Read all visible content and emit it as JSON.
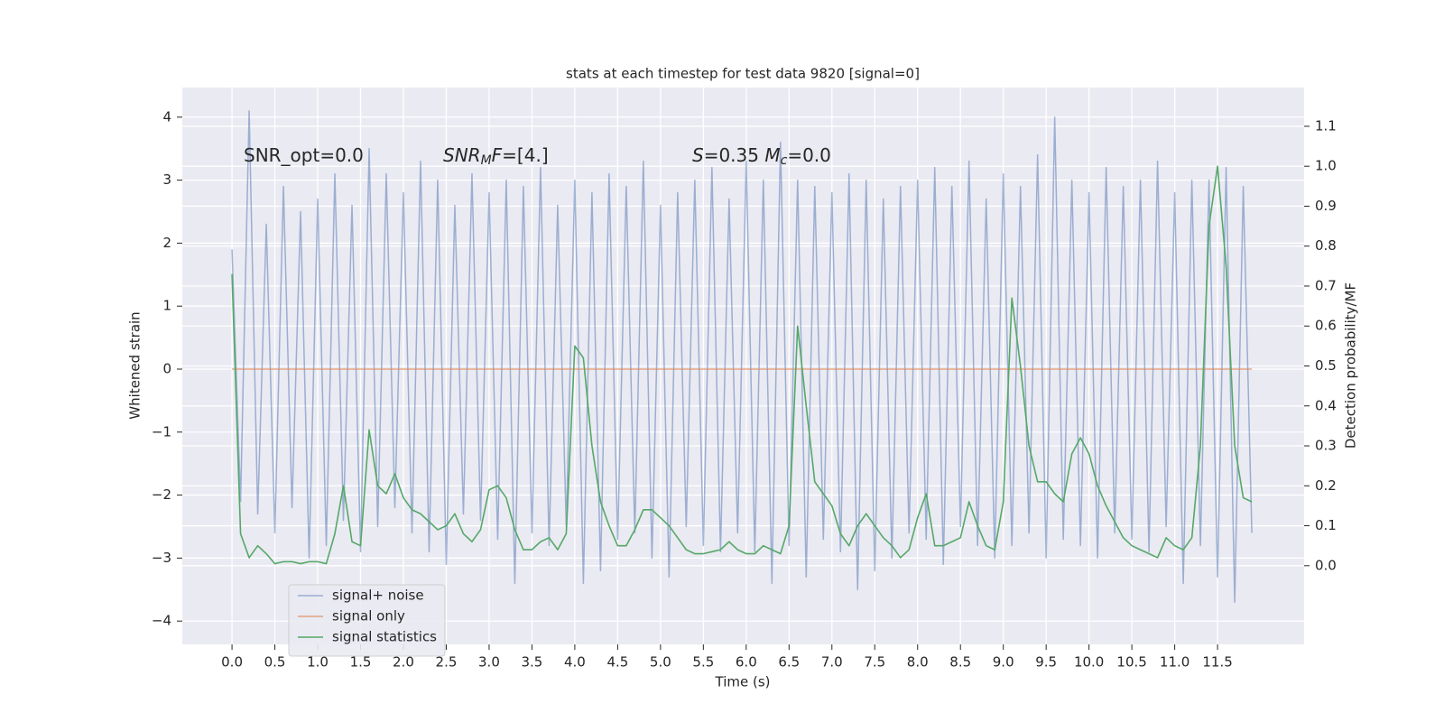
{
  "chart_data": {
    "type": "line",
    "title": "stats at each timestep for test data 9820 [signal=0]",
    "xlabel": "Time (s)",
    "ylabel": "Whitened strain",
    "y2label": "Detection probability/MF",
    "xlim": [
      -0.58,
      12.51
    ],
    "ylim": [
      -4.37,
      4.47
    ],
    "y2lim": [
      -0.197,
      1.197
    ],
    "grid": true,
    "legend": "lower left",
    "xticks": [
      {
        "value": 0,
        "label": "0.0"
      },
      {
        "value": 0.5,
        "label": "0.5"
      },
      {
        "value": 1,
        "label": "1.0"
      },
      {
        "value": 1.5,
        "label": "1.5"
      },
      {
        "value": 2,
        "label": "2.0"
      },
      {
        "value": 2.5,
        "label": "2.5"
      },
      {
        "value": 3,
        "label": "3.0"
      },
      {
        "value": 3.5,
        "label": "3.5"
      },
      {
        "value": 4,
        "label": "4.0"
      },
      {
        "value": 4.5,
        "label": "4.5"
      },
      {
        "value": 5,
        "label": "5.0"
      },
      {
        "value": 5.5,
        "label": "5.5"
      },
      {
        "value": 6,
        "label": "6.0"
      },
      {
        "value": 6.5,
        "label": "6.5"
      },
      {
        "value": 7,
        "label": "7.0"
      },
      {
        "value": 7.5,
        "label": "7.5"
      },
      {
        "value": 8,
        "label": "8.0"
      },
      {
        "value": 8.5,
        "label": "8.5"
      },
      {
        "value": 9,
        "label": "9.0"
      },
      {
        "value": 9.5,
        "label": "9.5"
      },
      {
        "value": 10,
        "label": "10.0"
      },
      {
        "value": 10.5,
        "label": "10.5"
      },
      {
        "value": 11,
        "label": "11.0"
      },
      {
        "value": 11.5,
        "label": "11.5"
      }
    ],
    "yticks": [
      {
        "value": -4,
        "label": "−4"
      },
      {
        "value": -3,
        "label": "−3"
      },
      {
        "value": -2,
        "label": "−2"
      },
      {
        "value": -1,
        "label": "−1"
      },
      0,
      1,
      2,
      3,
      4
    ],
    "y2ticks": [
      {
        "value": 0,
        "label": "0.0"
      },
      {
        "value": 0.1,
        "label": "0.1"
      },
      {
        "value": 0.2,
        "label": "0.2"
      },
      {
        "value": 0.3,
        "label": "0.3"
      },
      {
        "value": 0.4,
        "label": "0.4"
      },
      {
        "value": 0.5,
        "label": "0.5"
      },
      {
        "value": 0.6,
        "label": "0.6"
      },
      {
        "value": 0.7,
        "label": "0.7"
      },
      {
        "value": 0.8,
        "label": "0.8"
      },
      {
        "value": 0.9,
        "label": "0.9"
      },
      {
        "value": 1,
        "label": "1.0"
      },
      {
        "value": 1.1,
        "label": "1.1"
      }
    ],
    "annotations": [
      [
        {
          "text": "SNR_opt=0.0"
        }
      ],
      [
        {
          "text": "SNR",
          "italic": true
        },
        {
          "text": "M",
          "italic": true,
          "sub": true
        },
        {
          "text": "F",
          "italic": true
        },
        {
          "text": "=[4.]"
        }
      ],
      [
        {
          "text": "S",
          "italic": true
        },
        {
          "text": "=0.35   "
        },
        {
          "text": "M",
          "italic": true
        },
        {
          "text": "c",
          "italic": true,
          "sub": true
        },
        {
          "text": "=0.0"
        }
      ]
    ],
    "x": [
      0,
      0.1,
      0.2,
      0.3,
      0.4,
      0.5,
      0.6,
      0.7,
      0.8,
      0.9,
      1,
      1.1,
      1.2,
      1.3,
      1.4,
      1.5,
      1.6,
      1.7,
      1.8,
      1.9,
      2,
      2.1,
      2.2,
      2.3,
      2.4,
      2.5,
      2.6,
      2.7,
      2.8,
      2.9,
      3,
      3.1,
      3.2,
      3.3,
      3.4,
      3.5,
      3.6,
      3.7,
      3.8,
      3.9,
      4,
      4.1,
      4.2,
      4.3,
      4.4,
      4.5,
      4.6,
      4.7,
      4.8,
      4.9,
      5,
      5.1,
      5.2,
      5.3,
      5.4,
      5.5,
      5.6,
      5.7,
      5.8,
      5.9,
      6,
      6.1,
      6.2,
      6.3,
      6.4,
      6.5,
      6.6,
      6.7,
      6.8,
      6.9,
      7,
      7.1,
      7.2,
      7.3,
      7.4,
      7.5,
      7.6,
      7.7,
      7.8,
      7.9,
      8,
      8.1,
      8.2,
      8.3,
      8.4,
      8.5,
      8.6,
      8.7,
      8.8,
      8.9,
      9,
      9.1,
      9.2,
      9.3,
      9.4,
      9.5,
      9.6,
      9.7,
      9.8,
      9.9,
      10,
      10.1,
      10.2,
      10.3,
      10.4,
      10.5,
      10.6,
      10.7,
      10.8,
      10.9,
      11,
      11.1,
      11.2,
      11.3,
      11.4,
      11.5,
      11.6,
      11.7,
      11.8,
      11.9
    ],
    "series": [
      {
        "name": "signal+ noise",
        "color": "#4c72b0",
        "values": [
          1.9,
          -2.1,
          4.1,
          -2.3,
          2.3,
          -2.6,
          2.9,
          -2.2,
          2.5,
          -3.0,
          2.7,
          -2.8,
          3.1,
          -2.4,
          2.6,
          -2.9,
          3.5,
          -2.5,
          3.1,
          -2.2,
          2.8,
          -2.6,
          3.3,
          -2.9,
          3.0,
          -3.1,
          2.6,
          -2.3,
          3.1,
          -2.4,
          2.8,
          -2.7,
          3.0,
          -3.4,
          2.9,
          -2.6,
          3.2,
          -2.8,
          2.6,
          -2.5,
          3.0,
          -3.4,
          2.8,
          -3.2,
          3.1,
          -2.7,
          2.9,
          -2.6,
          3.3,
          -3.0,
          2.6,
          -3.3,
          2.8,
          -2.5,
          3.0,
          -2.8,
          3.2,
          -2.9,
          2.7,
          -2.6,
          3.3,
          -2.9,
          3.0,
          -3.4,
          3.6,
          -2.8,
          3.0,
          -3.3,
          2.9,
          -2.7,
          2.8,
          -2.9,
          3.1,
          -3.5,
          3.0,
          -3.2,
          2.7,
          -3.0,
          2.9,
          -2.6,
          3.0,
          -2.7,
          3.2,
          -3.1,
          2.9,
          -2.5,
          3.3,
          -2.8,
          2.7,
          -3.0,
          3.1,
          -2.8,
          2.9,
          -2.6,
          3.4,
          -3.0,
          4.0,
          -2.7,
          3.0,
          -2.8,
          2.8,
          -3.0,
          3.2,
          -2.6,
          2.9,
          -2.7,
          3.0,
          -2.9,
          3.3,
          -2.5,
          2.8,
          -3.4,
          3.0,
          -2.8,
          3.0,
          -3.3,
          3.2,
          -3.7,
          2.9,
          -2.6
        ]
      },
      {
        "name": "signal only",
        "color": "#dd8452",
        "values": [
          0,
          0,
          0,
          0,
          0,
          0,
          0,
          0,
          0,
          0,
          0,
          0,
          0,
          0,
          0,
          0,
          0,
          0,
          0,
          0,
          0,
          0,
          0,
          0,
          0,
          0,
          0,
          0,
          0,
          0,
          0,
          0,
          0,
          0,
          0,
          0,
          0,
          0,
          0,
          0,
          0,
          0,
          0,
          0,
          0,
          0,
          0,
          0,
          0,
          0,
          0,
          0,
          0,
          0,
          0,
          0,
          0,
          0,
          0,
          0,
          0,
          0,
          0,
          0,
          0,
          0,
          0,
          0,
          0,
          0,
          0,
          0,
          0,
          0,
          0,
          0,
          0,
          0,
          0,
          0,
          0,
          0,
          0,
          0,
          0,
          0,
          0,
          0,
          0,
          0,
          0,
          0,
          0,
          0,
          0,
          0,
          0,
          0,
          0,
          0,
          0,
          0,
          0,
          0,
          0,
          0,
          0,
          0,
          0,
          0,
          0,
          0,
          0,
          0,
          0,
          0,
          0,
          0,
          0,
          0
        ]
      },
      {
        "name": "signal statistics",
        "color": "#55a868",
        "axis": "y2",
        "values": [
          0.73,
          0.08,
          0.02,
          0.05,
          0.03,
          0.005,
          0.01,
          0.01,
          0.005,
          0.01,
          0.01,
          0.005,
          0.08,
          0.2,
          0.06,
          0.05,
          0.34,
          0.2,
          0.18,
          0.23,
          0.17,
          0.14,
          0.13,
          0.11,
          0.09,
          0.1,
          0.13,
          0.08,
          0.06,
          0.09,
          0.19,
          0.2,
          0.17,
          0.09,
          0.04,
          0.04,
          0.06,
          0.07,
          0.04,
          0.08,
          0.55,
          0.52,
          0.3,
          0.16,
          0.1,
          0.05,
          0.05,
          0.09,
          0.14,
          0.14,
          0.12,
          0.1,
          0.07,
          0.04,
          0.03,
          0.03,
          0.035,
          0.04,
          0.06,
          0.04,
          0.03,
          0.03,
          0.05,
          0.04,
          0.03,
          0.1,
          0.6,
          0.4,
          0.21,
          0.18,
          0.15,
          0.08,
          0.05,
          0.1,
          0.13,
          0.1,
          0.07,
          0.05,
          0.02,
          0.04,
          0.12,
          0.18,
          0.05,
          0.05,
          0.06,
          0.07,
          0.16,
          0.1,
          0.05,
          0.04,
          0.16,
          0.67,
          0.5,
          0.3,
          0.21,
          0.21,
          0.18,
          0.16,
          0.28,
          0.32,
          0.28,
          0.2,
          0.15,
          0.11,
          0.07,
          0.05,
          0.04,
          0.03,
          0.02,
          0.07,
          0.05,
          0.04,
          0.07,
          0.3,
          0.85,
          1.0,
          0.75,
          0.3,
          0.17,
          0.16
        ]
      }
    ]
  }
}
